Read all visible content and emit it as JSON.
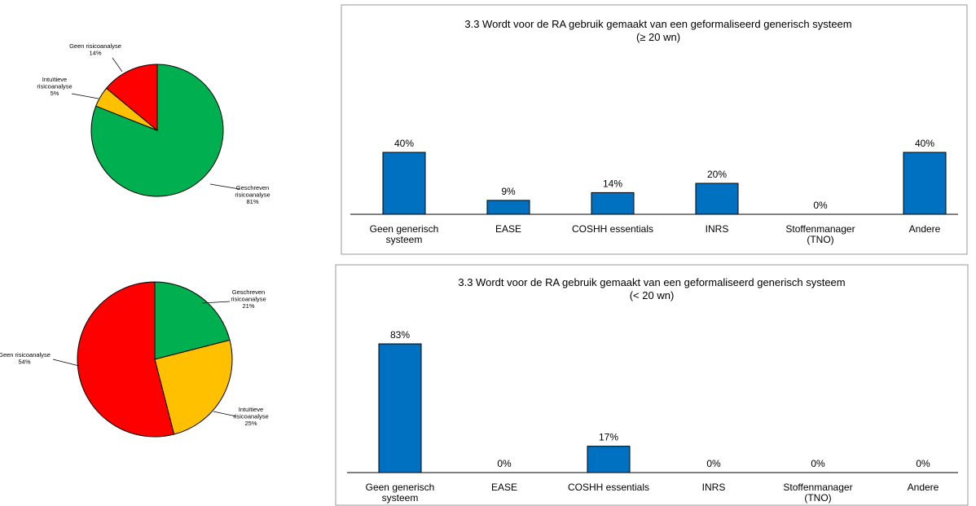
{
  "chart_data": [
    {
      "type": "pie",
      "slices": [
        {
          "label": [
            "Geschreven",
            "risicoanalyse"
          ],
          "pct_label": "81%",
          "value": 81,
          "color": "#00b050"
        },
        {
          "label": [
            "Intuïtieve",
            "risicoanalyse"
          ],
          "pct_label": "5%",
          "value": 5,
          "color": "#ffc000"
        },
        {
          "label": [
            "Geen risicoanalyse"
          ],
          "pct_label": "14%",
          "value": 14,
          "color": "#ff0000"
        }
      ]
    },
    {
      "type": "bar",
      "title": [
        "3.3 Wordt voor de RA gebruik gemaakt van een geformaliseerd generisch systeem",
        "(≥ 20 wn)"
      ],
      "categories": [
        [
          "Geen generisch",
          "systeem"
        ],
        [
          "EASE"
        ],
        [
          "COSHH essentials"
        ],
        [
          "INRS"
        ],
        [
          "Stoffenmanager",
          "(TNO)"
        ],
        [
          "Andere"
        ]
      ],
      "values": [
        40,
        9,
        14,
        20,
        0,
        40
      ],
      "value_labels": [
        "40%",
        "9%",
        "14%",
        "20%",
        "0%",
        "40%"
      ],
      "color": "#0070c0"
    },
    {
      "type": "pie",
      "slices": [
        {
          "label": [
            "Geschreven",
            "risicoanalyse"
          ],
          "pct_label": "21%",
          "value": 21,
          "color": "#00b050"
        },
        {
          "label": [
            "Intuïtieve",
            "risicoanalyse"
          ],
          "pct_label": "25%",
          "value": 25,
          "color": "#ffc000"
        },
        {
          "label": [
            "Geen risicoanalyse"
          ],
          "pct_label": "54%",
          "value": 54,
          "color": "#ff0000"
        }
      ]
    },
    {
      "type": "bar",
      "title": [
        "3.3 Wordt voor de RA gebruik gemaakt van een geformaliseerd generisch systeem",
        "(< 20 wn)"
      ],
      "categories": [
        [
          "Geen generisch",
          "systeem"
        ],
        [
          "EASE"
        ],
        [
          "COSHH essentials"
        ],
        [
          "INRS"
        ],
        [
          "Stoffenmanager",
          "(TNO)"
        ],
        [
          "Andere"
        ]
      ],
      "values": [
        83,
        0,
        17,
        0,
        0,
        0
      ],
      "value_labels": [
        "83%",
        "0%",
        "17%",
        "0%",
        "0%",
        "0%"
      ],
      "color": "#0070c0"
    }
  ]
}
